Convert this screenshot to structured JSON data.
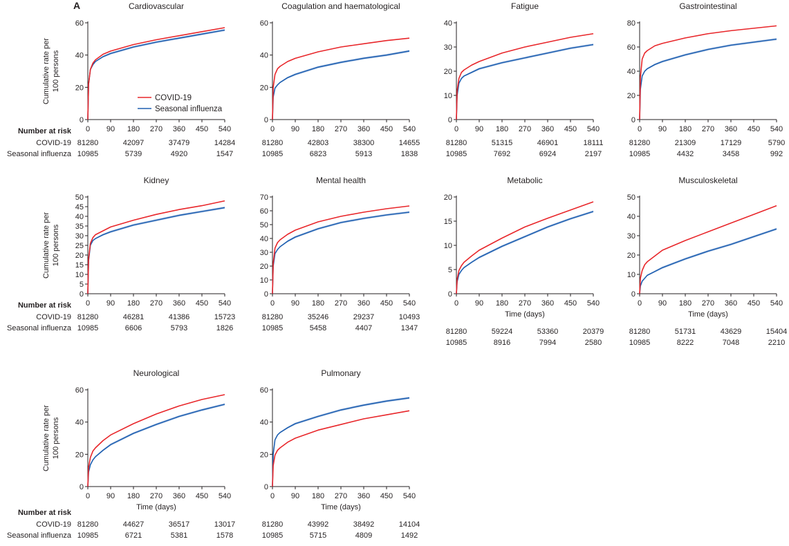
{
  "figure": {
    "panel_letter": "A",
    "risk_header": "Number at risk",
    "risk_row_labels": [
      "COVID-19",
      "Seasonal influenza"
    ]
  },
  "legend": [
    {
      "label": "COVID-19",
      "color": "#e8262a"
    },
    {
      "label": "Seasonal influenza",
      "color": "#1e5fb0"
    }
  ],
  "band_color": "#c5d5ec",
  "chart_data": [
    {
      "type": "line",
      "title": "Cardiovascular",
      "ylabel": "Cumulative rate per 100 persons",
      "xlabel": "",
      "ylim": [
        0,
        60
      ],
      "yticks": [
        0,
        20,
        40,
        60
      ],
      "xlim": [
        0,
        540
      ],
      "xticks": [
        0,
        90,
        180,
        270,
        360,
        450,
        540
      ],
      "series": [
        {
          "name": "COVID-19",
          "x": [
            0,
            3,
            10,
            20,
            30,
            60,
            90,
            180,
            270,
            360,
            450,
            540
          ],
          "y": [
            0,
            22,
            31,
            35,
            37,
            40.5,
            42.5,
            46.5,
            49.5,
            52,
            54.5,
            57
          ]
        },
        {
          "name": "Seasonal influenza",
          "x": [
            0,
            3,
            10,
            20,
            30,
            60,
            90,
            180,
            270,
            360,
            450,
            540
          ],
          "y": [
            0,
            22,
            31,
            34,
            36,
            39,
            41,
            45,
            48,
            50.5,
            53,
            55.5
          ]
        }
      ],
      "risk": {
        "x": [
          0,
          180,
          360,
          540
        ],
        "covid": [
          "81280",
          "42097",
          "37479",
          "14284"
        ],
        "flu": [
          "10985",
          "5739",
          "4920",
          "1547"
        ]
      }
    },
    {
      "type": "line",
      "title": "Coagulation and haematological",
      "ylabel": "",
      "xlabel": "",
      "ylim": [
        0,
        60
      ],
      "yticks": [
        0,
        20,
        40,
        60
      ],
      "xlim": [
        0,
        540
      ],
      "xticks": [
        0,
        90,
        180,
        270,
        360,
        450,
        540
      ],
      "series": [
        {
          "name": "COVID-19",
          "x": [
            0,
            3,
            10,
            20,
            30,
            60,
            90,
            180,
            270,
            360,
            450,
            540
          ],
          "y": [
            0,
            20,
            28,
            31.5,
            33,
            36,
            38,
            42,
            45,
            47,
            49,
            50.5
          ]
        },
        {
          "name": "Seasonal influenza",
          "x": [
            0,
            3,
            10,
            20,
            30,
            60,
            90,
            180,
            270,
            360,
            450,
            540
          ],
          "y": [
            0,
            14,
            19.5,
            21.5,
            23,
            26,
            28,
            32.5,
            35.5,
            38,
            40,
            42.5
          ]
        }
      ],
      "risk": {
        "x": [
          0,
          180,
          360,
          540
        ],
        "covid": [
          "81280",
          "42803",
          "38300",
          "14655"
        ],
        "flu": [
          "10985",
          "6823",
          "5913",
          "1838"
        ]
      }
    },
    {
      "type": "line",
      "title": "Fatigue",
      "ylabel": "",
      "xlabel": "",
      "ylim": [
        0,
        40
      ],
      "yticks": [
        0,
        10,
        20,
        30,
        40
      ],
      "xlim": [
        0,
        540
      ],
      "xticks": [
        0,
        90,
        180,
        270,
        360,
        450,
        540
      ],
      "series": [
        {
          "name": "COVID-19",
          "x": [
            0,
            3,
            10,
            20,
            30,
            60,
            90,
            180,
            270,
            360,
            450,
            540
          ],
          "y": [
            0,
            12,
            17,
            19.5,
            20.5,
            22.5,
            24,
            27.5,
            30,
            32,
            34,
            35.5
          ]
        },
        {
          "name": "Seasonal influenza",
          "x": [
            0,
            3,
            10,
            20,
            30,
            60,
            90,
            180,
            270,
            360,
            450,
            540
          ],
          "y": [
            0,
            10,
            15,
            17,
            18,
            19.5,
            21,
            23.5,
            25.5,
            27.5,
            29.5,
            31
          ]
        }
      ],
      "risk": {
        "x": [
          0,
          180,
          360,
          540
        ],
        "covid": [
          "81280",
          "51315",
          "46901",
          "18111"
        ],
        "flu": [
          "10985",
          "7692",
          "6924",
          "2197"
        ]
      }
    },
    {
      "type": "line",
      "title": "Gastrointestinal",
      "ylabel": "",
      "xlabel": "",
      "ylim": [
        0,
        80
      ],
      "yticks": [
        0,
        20,
        40,
        60,
        80
      ],
      "xlim": [
        0,
        540
      ],
      "xticks": [
        0,
        90,
        180,
        270,
        360,
        450,
        540
      ],
      "series": [
        {
          "name": "COVID-19",
          "x": [
            0,
            3,
            10,
            20,
            30,
            60,
            90,
            180,
            270,
            360,
            450,
            540
          ],
          "y": [
            0,
            35,
            50,
            55,
            57,
            61,
            63,
            67.5,
            71,
            73.5,
            75.5,
            77.5
          ]
        },
        {
          "name": "Seasonal influenza",
          "x": [
            0,
            3,
            10,
            20,
            30,
            60,
            90,
            180,
            270,
            360,
            450,
            540
          ],
          "y": [
            0,
            25,
            36,
            40,
            42,
            45.5,
            48,
            53.5,
            58,
            61.5,
            64,
            66.5
          ]
        }
      ],
      "risk": {
        "x": [
          0,
          180,
          360,
          540
        ],
        "covid": [
          "81280",
          "21309",
          "17129",
          "5790"
        ],
        "flu": [
          "10985",
          "4432",
          "3458",
          "992"
        ]
      }
    },
    {
      "type": "line",
      "title": "Kidney",
      "ylabel": "Cumulative rate per 100 persons",
      "xlabel": "",
      "ylim": [
        0,
        50
      ],
      "yticks": [
        0,
        5,
        10,
        15,
        20,
        25,
        30,
        35,
        40,
        45,
        50
      ],
      "xlim": [
        0,
        540
      ],
      "xticks": [
        0,
        90,
        180,
        270,
        360,
        450,
        540
      ],
      "series": [
        {
          "name": "COVID-19",
          "x": [
            0,
            3,
            10,
            20,
            30,
            60,
            90,
            180,
            270,
            360,
            450,
            540
          ],
          "y": [
            0,
            18,
            26,
            29,
            30.5,
            32.5,
            34.5,
            38,
            41,
            43.5,
            45.5,
            48
          ]
        },
        {
          "name": "Seasonal influenza",
          "x": [
            0,
            3,
            10,
            20,
            30,
            60,
            90,
            180,
            270,
            360,
            450,
            540
          ],
          "y": [
            0,
            17,
            25,
            27.5,
            28.5,
            30.5,
            32,
            35.5,
            38,
            40.5,
            42.5,
            44.5
          ]
        }
      ],
      "risk": {
        "x": [
          0,
          180,
          360,
          540
        ],
        "covid": [
          "81280",
          "46281",
          "41386",
          "15723"
        ],
        "flu": [
          "10985",
          "6606",
          "5793",
          "1826"
        ]
      }
    },
    {
      "type": "line",
      "title": "Mental health",
      "ylabel": "",
      "xlabel": "",
      "ylim": [
        0,
        70
      ],
      "yticks": [
        0,
        10,
        20,
        30,
        40,
        50,
        60,
        70
      ],
      "xlim": [
        0,
        540
      ],
      "xticks": [
        0,
        90,
        180,
        270,
        360,
        450,
        540
      ],
      "series": [
        {
          "name": "COVID-19",
          "x": [
            0,
            3,
            10,
            20,
            30,
            60,
            90,
            180,
            270,
            360,
            450,
            540
          ],
          "y": [
            0,
            22,
            33,
            37,
            39,
            43,
            46,
            52,
            56,
            59,
            61.5,
            63.5
          ]
        },
        {
          "name": "Seasonal influenza",
          "x": [
            0,
            3,
            10,
            20,
            30,
            60,
            90,
            180,
            270,
            360,
            450,
            540
          ],
          "y": [
            0,
            20,
            29,
            32,
            34,
            38,
            41,
            47,
            51.5,
            54.5,
            57,
            59
          ]
        }
      ],
      "risk": {
        "x": [
          0,
          180,
          360,
          540
        ],
        "covid": [
          "81280",
          "35246",
          "29237",
          "10493"
        ],
        "flu": [
          "10985",
          "5458",
          "4407",
          "1347"
        ]
      }
    },
    {
      "type": "line",
      "title": "Metabolic",
      "ylabel": "",
      "xlabel": "Time (days)",
      "ylim": [
        0,
        20
      ],
      "yticks": [
        0,
        5,
        10,
        15,
        20
      ],
      "xlim": [
        0,
        540
      ],
      "xticks": [
        0,
        90,
        180,
        270,
        360,
        450,
        540
      ],
      "series": [
        {
          "name": "COVID-19",
          "x": [
            0,
            3,
            10,
            20,
            30,
            60,
            90,
            180,
            270,
            360,
            450,
            540
          ],
          "y": [
            0,
            3,
            4.8,
            5.8,
            6.5,
            7.8,
            9,
            11.5,
            13.8,
            15.6,
            17.3,
            19
          ]
        },
        {
          "name": "Seasonal influenza",
          "x": [
            0,
            3,
            10,
            20,
            30,
            60,
            90,
            180,
            270,
            360,
            450,
            540
          ],
          "y": [
            0,
            2.5,
            4,
            4.8,
            5.4,
            6.5,
            7.5,
            9.8,
            11.8,
            13.8,
            15.5,
            17
          ]
        }
      ],
      "risk": {
        "x": [
          0,
          180,
          360,
          540
        ],
        "covid": [
          "81280",
          "59224",
          "53360",
          "20379"
        ],
        "flu": [
          "10985",
          "8916",
          "7994",
          "2580"
        ]
      }
    },
    {
      "type": "line",
      "title": "Musculoskeletal",
      "ylabel": "",
      "xlabel": "Time (days)",
      "ylim": [
        0,
        50
      ],
      "yticks": [
        0,
        10,
        20,
        30,
        40,
        50
      ],
      "xlim": [
        0,
        540
      ],
      "xticks": [
        0,
        90,
        180,
        270,
        360,
        450,
        540
      ],
      "series": [
        {
          "name": "COVID-19",
          "x": [
            0,
            3,
            10,
            20,
            30,
            60,
            90,
            180,
            270,
            360,
            450,
            540
          ],
          "y": [
            0,
            8,
            12,
            15,
            16.5,
            19.5,
            22.5,
            27.5,
            32,
            36.5,
            41,
            45.5
          ]
        },
        {
          "name": "Seasonal influenza",
          "x": [
            0,
            3,
            10,
            20,
            30,
            60,
            90,
            180,
            270,
            360,
            450,
            540
          ],
          "y": [
            0,
            4,
            6.5,
            8,
            9.5,
            11.5,
            13.5,
            18,
            22,
            25.5,
            29.5,
            33.5
          ]
        }
      ],
      "risk": {
        "x": [
          0,
          180,
          360,
          540
        ],
        "covid": [
          "81280",
          "51731",
          "43629",
          "15404"
        ],
        "flu": [
          "10985",
          "8222",
          "7048",
          "2210"
        ]
      }
    },
    {
      "type": "line",
      "title": "Neurological",
      "ylabel": "Cumulative rate per 100 persons",
      "xlabel": "Time (days)",
      "ylim": [
        0,
        60
      ],
      "yticks": [
        0,
        20,
        40,
        60
      ],
      "xlim": [
        0,
        540
      ],
      "xticks": [
        0,
        90,
        180,
        270,
        360,
        450,
        540
      ],
      "series": [
        {
          "name": "COVID-19",
          "x": [
            0,
            3,
            10,
            20,
            30,
            60,
            90,
            180,
            270,
            360,
            450,
            540
          ],
          "y": [
            0,
            12,
            18,
            22,
            24,
            28.5,
            32,
            39,
            45,
            50,
            54,
            57
          ]
        },
        {
          "name": "Seasonal influenza",
          "x": [
            0,
            3,
            10,
            20,
            30,
            60,
            90,
            180,
            270,
            360,
            450,
            540
          ],
          "y": [
            0,
            9,
            13.5,
            16.5,
            18.5,
            22.5,
            26,
            33,
            38.5,
            43.5,
            47.5,
            51
          ]
        }
      ],
      "risk": {
        "x": [
          0,
          180,
          360,
          540
        ],
        "covid": [
          "81280",
          "44627",
          "36517",
          "13017"
        ],
        "flu": [
          "10985",
          "6721",
          "5381",
          "1578"
        ]
      }
    },
    {
      "type": "line",
      "title": "Pulmonary",
      "ylabel": "",
      "xlabel": "Time (days)",
      "ylim": [
        0,
        60
      ],
      "yticks": [
        0,
        20,
        40,
        60
      ],
      "xlim": [
        0,
        540
      ],
      "xticks": [
        0,
        90,
        180,
        270,
        360,
        450,
        540
      ],
      "series": [
        {
          "name": "COVID-19",
          "x": [
            0,
            3,
            10,
            20,
            30,
            60,
            90,
            180,
            270,
            360,
            450,
            540
          ],
          "y": [
            0,
            13,
            19.5,
            22.5,
            24,
            27.5,
            30,
            35,
            38.5,
            42,
            44.5,
            47
          ]
        },
        {
          "name": "Seasonal influenza",
          "x": [
            0,
            3,
            10,
            20,
            30,
            60,
            90,
            180,
            270,
            360,
            450,
            540
          ],
          "y": [
            0,
            20,
            29,
            32,
            33.5,
            36.5,
            39,
            43.5,
            47.5,
            50.5,
            53,
            55
          ]
        }
      ],
      "risk": {
        "x": [
          0,
          180,
          360,
          540
        ],
        "covid": [
          "81280",
          "43992",
          "38492",
          "14104"
        ],
        "flu": [
          "10985",
          "5715",
          "4809",
          "1492"
        ]
      }
    }
  ]
}
